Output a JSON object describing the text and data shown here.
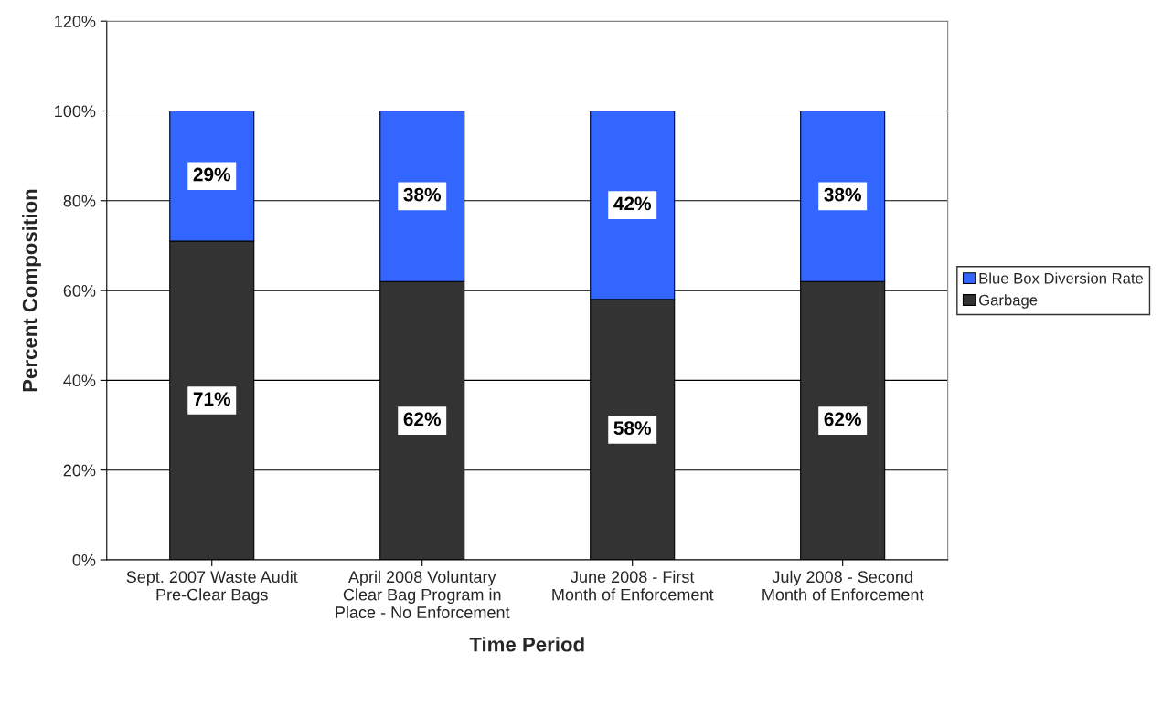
{
  "chart_data": {
    "type": "bar",
    "stacked": true,
    "xlabel": "Time Period",
    "ylabel": "Percent Composition",
    "categories": [
      "Sept. 2007 Waste Audit Pre-Clear Bags",
      "April 2008 Voluntary Clear Bag Program in Place - No Enforcement",
      "June 2008 - First Month of Enforcement",
      "July 2008 - Second Month of Enforcement"
    ],
    "series": [
      {
        "name": "Garbage",
        "color": "#333333",
        "values": [
          71,
          62,
          58,
          62
        ],
        "value_labels": [
          "71%",
          "62%",
          "58%",
          "62%"
        ]
      },
      {
        "name": "Blue Box Diversion Rate",
        "color": "#3366ff",
        "values": [
          29,
          38,
          42,
          38
        ],
        "value_labels": [
          "29%",
          "38%",
          "42%",
          "38%"
        ]
      }
    ],
    "ylim": [
      0,
      120
    ],
    "yticks": [
      {
        "value": 0,
        "label": "0%"
      },
      {
        "value": 20,
        "label": "20%"
      },
      {
        "value": 40,
        "label": "40%"
      },
      {
        "value": 60,
        "label": "60%"
      },
      {
        "value": 80,
        "label": "80%"
      },
      {
        "value": 100,
        "label": "100%"
      },
      {
        "value": 120,
        "label": "120%"
      }
    ],
    "grid": "y",
    "legend": "right"
  }
}
